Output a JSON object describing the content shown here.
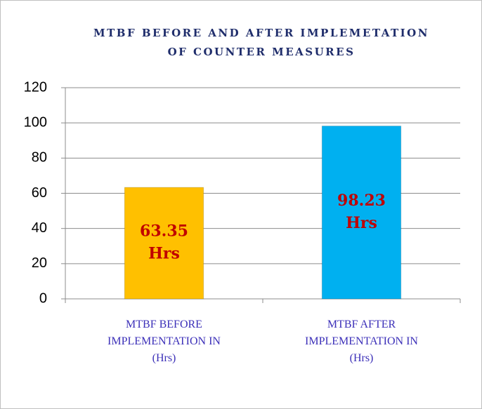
{
  "chart_data": {
    "type": "bar",
    "title": "MTBF BEFORE AND AFTER IMPLEMETATION OF COUNTER MEASURES",
    "categories": [
      "MTBF BEFORE IMPLEMENTATION IN (Hrs)",
      "MTBF AFTER IMPLEMENTATION IN (Hrs)"
    ],
    "values": [
      63.35,
      98.23
    ],
    "value_labels": [
      "63.35 Hrs",
      "98.23 Hrs"
    ],
    "colors": [
      "#ffc000",
      "#00b0f0"
    ],
    "ylim": [
      0,
      120
    ],
    "yticks": [
      0,
      20,
      40,
      60,
      80,
      100,
      120
    ],
    "grid": true
  }
}
